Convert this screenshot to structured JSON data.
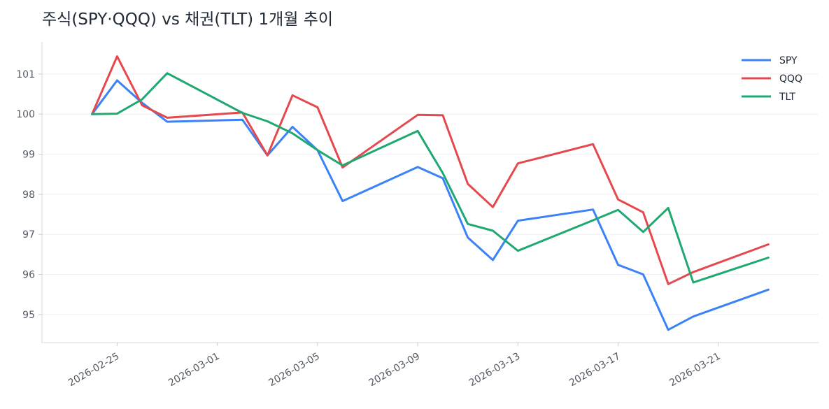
{
  "chart_data": {
    "type": "line",
    "title": "주식(SPY·QQQ) vs 채권(TLT) 1개월 추이",
    "xlabel": "",
    "ylabel": "",
    "x": [
      "2026-02-24",
      "2026-02-25",
      "2026-02-26",
      "2026-02-27",
      "2026-03-02",
      "2026-03-03",
      "2026-03-04",
      "2026-03-05",
      "2026-03-06",
      "2026-03-09",
      "2026-03-10",
      "2026-03-11",
      "2026-03-12",
      "2026-03-13",
      "2026-03-16",
      "2026-03-17",
      "2026-03-18",
      "2026-03-19",
      "2026-03-20",
      "2026-03-23"
    ],
    "series": [
      {
        "name": "SPY",
        "color": "#3b82f6",
        "values": [
          100.0,
          100.84,
          100.28,
          99.81,
          99.86,
          98.97,
          99.68,
          99.1,
          97.83,
          98.68,
          98.4,
          96.92,
          96.36,
          97.34,
          97.62,
          96.24,
          96.0,
          94.62,
          94.95,
          95.62
        ]
      },
      {
        "name": "QQQ",
        "color": "#e5484d",
        "values": [
          100.0,
          101.44,
          100.22,
          99.91,
          100.04,
          98.97,
          100.47,
          100.17,
          98.67,
          99.98,
          99.97,
          98.26,
          97.68,
          98.77,
          99.25,
          97.87,
          97.55,
          95.76,
          96.06,
          96.75
        ]
      },
      {
        "name": "TLT",
        "color": "#1fa971",
        "values": [
          100.0,
          100.01,
          100.37,
          101.02,
          100.03,
          99.82,
          99.52,
          99.1,
          98.72,
          99.58,
          98.53,
          97.26,
          97.09,
          96.59,
          97.35,
          97.61,
          97.06,
          97.66,
          95.8,
          96.42
        ]
      }
    ],
    "xticks": [
      "2026-02-25",
      "2026-03-01",
      "2026-03-05",
      "2026-03-09",
      "2026-03-13",
      "2026-03-17",
      "2026-03-21"
    ],
    "yticks": [
      95,
      96,
      97,
      98,
      99,
      100,
      101
    ],
    "ylim": [
      94.3,
      101.8
    ],
    "xlim": [
      "2026-02-22",
      "2026-03-25"
    ],
    "grid": "y",
    "legend": "top-right"
  }
}
